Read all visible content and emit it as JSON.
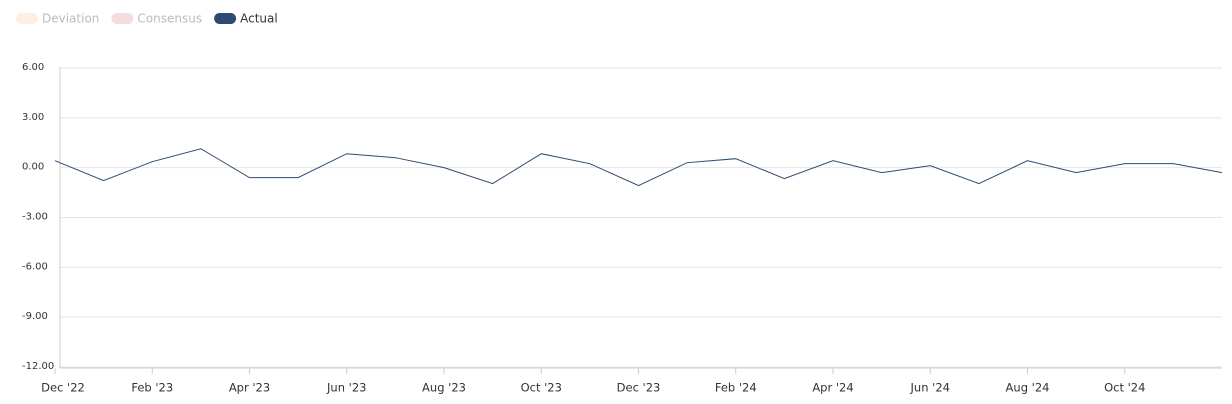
{
  "chart_data": {
    "type": "line",
    "legend": [
      {
        "name": "Deviation",
        "color": "#fbeee4",
        "visible": false
      },
      {
        "name": "Consensus",
        "color": "#f6dcdc",
        "visible": false
      }
    ],
    "categories": [
      "Dec '22",
      null,
      "Feb '23",
      null,
      "Apr '23",
      null,
      "Jun '23",
      null,
      "Aug '23",
      null,
      "Oct '23",
      null,
      "Dec '23",
      null,
      "Feb '24",
      null,
      "Apr '24",
      null,
      "Jun '24",
      null,
      "Aug '24",
      null,
      "Oct '24",
      null,
      null
    ],
    "series": [
      {
        "name": "Actual",
        "color": "#2e4a72",
        "visible": true,
        "values": [
          0.36,
          -0.84,
          0.3,
          1.08,
          -0.66,
          -0.66,
          0.78,
          0.54,
          -0.06,
          -1.02,
          0.78,
          0.18,
          -1.14,
          0.24,
          0.48,
          -0.72,
          0.36,
          -0.36,
          0.06,
          -1.02,
          0.36,
          -0.36,
          0.18,
          0.18,
          -0.36
        ]
      }
    ],
    "ylim": [
      -12,
      6
    ],
    "yticks": [
      {
        "value": 6,
        "label": "6.00"
      },
      {
        "value": 3,
        "label": "3.00"
      },
      {
        "value": 0,
        "label": "0.00"
      },
      {
        "value": -3,
        "label": "-3.00"
      },
      {
        "value": -6,
        "label": "-6.00"
      },
      {
        "value": -9,
        "label": "-9.00"
      },
      {
        "value": -12,
        "label": "-12.00"
      }
    ],
    "grid": true
  }
}
